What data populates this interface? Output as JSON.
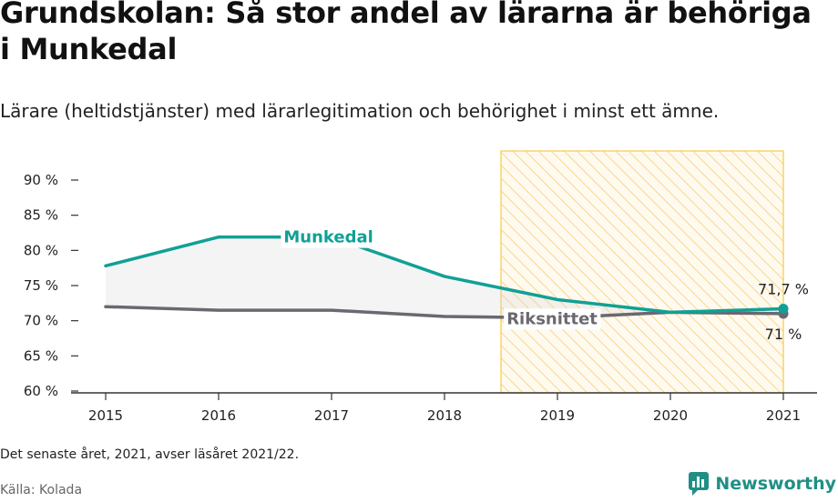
{
  "title": "Grundskolan: Så stor andel av lärarna är behöriga i Munkedal",
  "subtitle": "Lärare (heltidstjänster) med lärarlegitimation och behörighet i minst ett ämne.",
  "note": "Det senaste året, 2021, avser läsåret 2021/22.",
  "source": "Källa: Kolada",
  "brand": {
    "name": "Newsworthy",
    "icon": "newsworthy-logo-icon",
    "color": "#1f8f86"
  },
  "chart_data": {
    "type": "line",
    "x": [
      2015,
      2016,
      2017,
      2018,
      2019,
      2020,
      2021
    ],
    "x_tick_labels": [
      "2015",
      "2016",
      "2017",
      "2018",
      "2019",
      "2020",
      "2021"
    ],
    "y_ticks": [
      60,
      65,
      70,
      75,
      80,
      85,
      90
    ],
    "y_tick_labels": [
      "60 %",
      "65 %",
      "70 %",
      "75 %",
      "80 %",
      "85 %",
      "90 %"
    ],
    "ylim": [
      60,
      90
    ],
    "series": [
      {
        "name": "Munkedal",
        "color": "#11a096",
        "values": [
          77.8,
          81.9,
          81.9,
          76.3,
          73.0,
          71.2,
          71.7
        ],
        "end_label": "71,7 %"
      },
      {
        "name": "Riksnittet",
        "color": "#6b6870",
        "values": [
          72.0,
          71.5,
          71.5,
          70.6,
          70.4,
          71.2,
          71.0
        ],
        "end_label": "71 %"
      }
    ],
    "highlight_range": [
      2018.5,
      2021
    ],
    "highlight_color": "#f7c948",
    "fill_between": true,
    "grid": false
  }
}
